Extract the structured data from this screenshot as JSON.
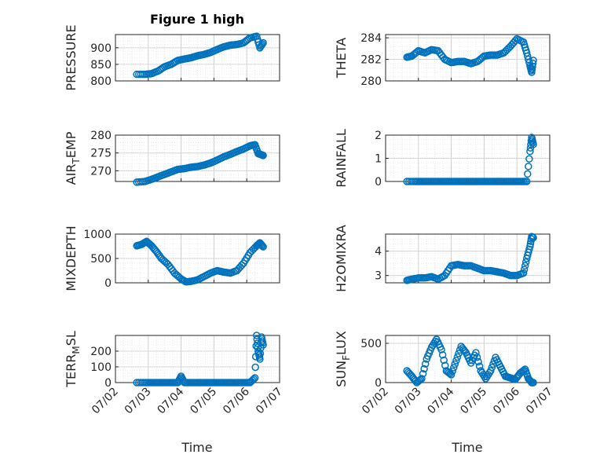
{
  "title": "Figure 1 high",
  "xlabel": "Time",
  "x_tick_labels": [
    "07/02",
    "07/03",
    "07/04",
    "07/05",
    "07/06",
    "07/07"
  ],
  "marker_color": "#0072BD",
  "chart_data": [
    {
      "type": "scatter",
      "name": "PRESSURE",
      "ylabel": "PRESSURE",
      "ylim": [
        800,
        940
      ],
      "yticks": [
        800,
        850,
        900
      ],
      "x": [
        2.65,
        2.9,
        3.1,
        3.3,
        3.5,
        3.7,
        3.9,
        4.1,
        4.3,
        4.5,
        4.7,
        4.9,
        5.1,
        5.3,
        5.5,
        5.7,
        5.9,
        6.1,
        6.3,
        6.4,
        6.5
      ],
      "y": [
        820,
        820,
        822,
        830,
        843,
        850,
        862,
        866,
        870,
        876,
        880,
        886,
        895,
        903,
        908,
        910,
        915,
        930,
        935,
        900,
        915
      ]
    },
    {
      "type": "scatter",
      "name": "THETA",
      "ylabel": "THETA",
      "ylim": [
        280,
        284.3
      ],
      "yticks": [
        280,
        282,
        284
      ],
      "x": [
        2.65,
        2.8,
        3.0,
        3.2,
        3.4,
        3.6,
        3.8,
        4.0,
        4.2,
        4.4,
        4.6,
        4.8,
        5.0,
        5.2,
        5.4,
        5.6,
        5.8,
        6.0,
        6.2,
        6.3,
        6.4,
        6.45,
        6.5
      ],
      "y": [
        282.2,
        282.3,
        282.8,
        282.6,
        282.9,
        282.8,
        282.0,
        281.7,
        281.8,
        281.8,
        281.6,
        281.8,
        282.3,
        282.4,
        282.4,
        282.6,
        283.2,
        283.9,
        283.6,
        282.6,
        281.4,
        280.8,
        281.9
      ]
    },
    {
      "type": "scatter",
      "name": "AIR_TEMP",
      "ylabel": "AIR_TEMP",
      "ylim": [
        267,
        280
      ],
      "yticks": [
        270,
        275,
        280
      ],
      "x": [
        2.65,
        2.9,
        3.1,
        3.3,
        3.5,
        3.7,
        3.9,
        4.1,
        4.3,
        4.5,
        4.7,
        4.9,
        5.1,
        5.3,
        5.5,
        5.7,
        5.9,
        6.1,
        6.25,
        6.35,
        6.45,
        6.5
      ],
      "y": [
        266.8,
        267.0,
        267.6,
        268.3,
        269.0,
        269.7,
        270.4,
        270.6,
        271.0,
        271.2,
        271.6,
        272.2,
        273.0,
        273.9,
        274.6,
        275.4,
        276.1,
        277.0,
        277.3,
        274.8,
        274.5,
        274.3
      ]
    },
    {
      "type": "scatter",
      "name": "RAINFALL",
      "ylabel": "RAINFALL",
      "ylim": [
        0,
        2
      ],
      "yticks": [
        0,
        1,
        2
      ],
      "x": [
        2.65,
        2.9,
        3.1,
        3.3,
        3.5,
        3.7,
        3.9,
        4.1,
        4.3,
        4.5,
        4.7,
        4.9,
        5.1,
        5.3,
        5.5,
        5.7,
        5.9,
        6.1,
        6.3,
        6.4,
        6.45,
        6.5
      ],
      "y": [
        0,
        0,
        0,
        0,
        0,
        0,
        0,
        0,
        0,
        0,
        0,
        0,
        0,
        0,
        0,
        0,
        0,
        0,
        0,
        1.3,
        1.9,
        1.6
      ]
    },
    {
      "type": "scatter",
      "name": "MIXDEPTH",
      "ylabel": "MIXDEPTH",
      "ylim": [
        0,
        1000
      ],
      "yticks": [
        0,
        500,
        1000
      ],
      "x": [
        2.65,
        2.8,
        2.95,
        3.1,
        3.25,
        3.4,
        3.6,
        3.8,
        4.0,
        4.15,
        4.3,
        4.5,
        4.7,
        4.9,
        5.1,
        5.3,
        5.5,
        5.7,
        5.9,
        6.1,
        6.3,
        6.4,
        6.5
      ],
      "y": [
        760,
        790,
        850,
        760,
        640,
        500,
        380,
        200,
        80,
        20,
        30,
        60,
        130,
        200,
        250,
        220,
        200,
        250,
        400,
        620,
        760,
        820,
        740
      ]
    },
    {
      "type": "scatter",
      "name": "H2OMIXRA",
      "ylabel": "H2OMIXRA",
      "ylim": [
        2.7,
        4.7
      ],
      "yticks": [
        3,
        4
      ],
      "x": [
        2.65,
        2.8,
        3.0,
        3.2,
        3.4,
        3.6,
        3.8,
        4.0,
        4.2,
        4.4,
        4.6,
        4.8,
        5.0,
        5.2,
        5.4,
        5.6,
        5.8,
        6.0,
        6.2,
        6.3,
        6.4,
        6.45,
        6.5
      ],
      "y": [
        2.8,
        2.85,
        2.9,
        2.9,
        2.95,
        2.85,
        3.0,
        3.4,
        3.45,
        3.4,
        3.4,
        3.3,
        3.2,
        3.2,
        3.15,
        3.1,
        3.0,
        3.0,
        3.1,
        3.7,
        4.2,
        4.6,
        4.55
      ]
    },
    {
      "type": "scatter",
      "name": "TERR_MSL",
      "ylabel": "TERR_MSL",
      "ylim": [
        0,
        300
      ],
      "yticks": [
        0,
        100,
        200
      ],
      "x": [
        2.65,
        2.9,
        3.1,
        3.3,
        3.5,
        3.7,
        3.9,
        4.0,
        4.1,
        4.3,
        4.5,
        4.7,
        4.9,
        5.1,
        5.3,
        5.5,
        5.7,
        5.9,
        6.1,
        6.25,
        6.3,
        6.35,
        6.4,
        6.45,
        6.5
      ],
      "y": [
        0,
        0,
        0,
        0,
        0,
        0,
        0,
        40,
        0,
        0,
        0,
        0,
        0,
        0,
        0,
        0,
        0,
        0,
        0,
        30,
        300,
        200,
        150,
        290,
        240
      ]
    },
    {
      "type": "scatter",
      "name": "SUN_FLUX",
      "ylabel": "SUN_FLUX",
      "ylim": [
        0,
        600
      ],
      "yticks": [
        0,
        500
      ],
      "x": [
        2.65,
        2.8,
        2.95,
        3.1,
        3.25,
        3.4,
        3.55,
        3.7,
        3.85,
        4.0,
        4.15,
        4.3,
        4.45,
        4.6,
        4.75,
        4.9,
        5.05,
        5.2,
        5.35,
        5.5,
        5.65,
        5.8,
        5.95,
        6.1,
        6.25,
        6.35,
        6.45,
        6.5
      ],
      "y": [
        150,
        80,
        0,
        50,
        300,
        450,
        550,
        420,
        150,
        100,
        280,
        460,
        380,
        250,
        380,
        150,
        50,
        150,
        320,
        200,
        80,
        60,
        40,
        120,
        170,
        50,
        0,
        0
      ]
    }
  ]
}
